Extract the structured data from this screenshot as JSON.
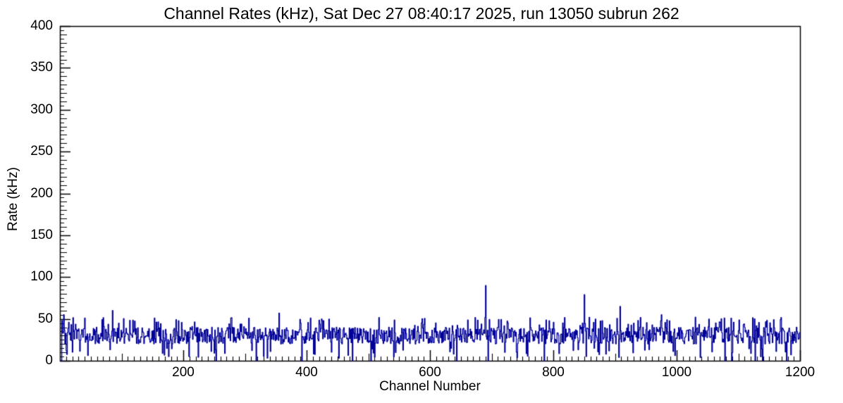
{
  "chart_data": {
    "type": "line",
    "title": "Channel Rates (kHz), Sat Dec 27 08:40:17 2025, run 13050 subrun 262",
    "xlabel": "Channel Number",
    "ylabel": "Rate (kHz)",
    "xlim": [
      0,
      1200
    ],
    "ylim": [
      0,
      400
    ],
    "x_major_ticks": [
      200,
      400,
      600,
      800,
      1000,
      1200
    ],
    "x_minor_tick_step": 10,
    "y_major_ticks": [
      0,
      50,
      100,
      150,
      200,
      250,
      300,
      350,
      400
    ],
    "y_minor_tick_step": 5,
    "grid": false,
    "legend": "none",
    "line_color": "#000099",
    "frame_color": "#000000",
    "n_channels": 1200,
    "baseline": {
      "mean_kHz": 29,
      "typical_range_kHz": [
        18,
        50
      ],
      "occasional_dips_kHz": [
        0,
        12
      ]
    },
    "notable_peaks": [
      {
        "channel": 3,
        "rate_kHz": 48
      },
      {
        "channel": 6,
        "rate_kHz": 55
      },
      {
        "channel": 85,
        "rate_kHz": 60
      },
      {
        "channel": 355,
        "rate_kHz": 57
      },
      {
        "channel": 690,
        "rate_kHz": 90
      },
      {
        "channel": 850,
        "rate_kHz": 79
      },
      {
        "channel": 908,
        "rate_kHz": 65
      },
      {
        "channel": 975,
        "rate_kHz": 55
      },
      {
        "channel": 1030,
        "rate_kHz": 52
      }
    ],
    "noise_seed": 1305262
  }
}
